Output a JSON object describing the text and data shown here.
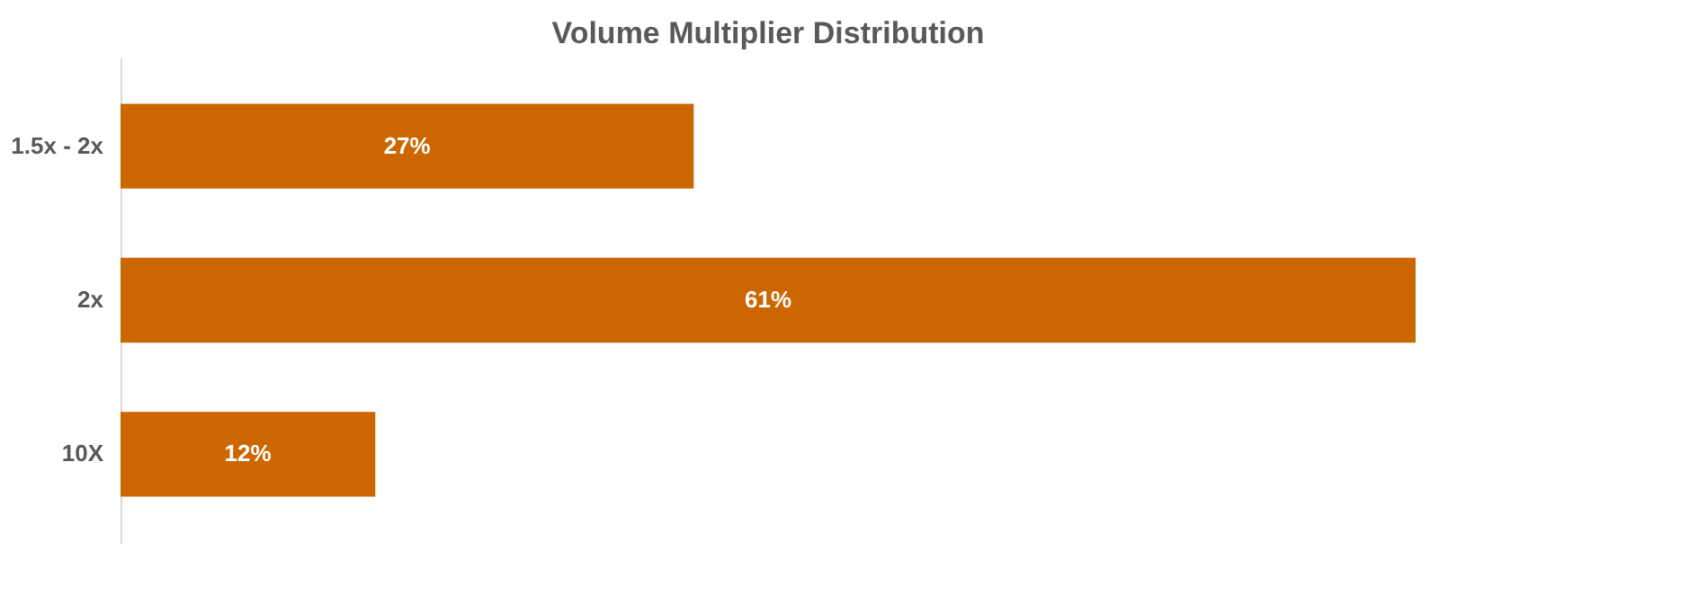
{
  "chart_data": {
    "type": "bar",
    "orientation": "horizontal",
    "title": "Volume Multiplier Distribution",
    "categories": [
      "1.5x - 2x",
      "2x",
      "10X"
    ],
    "values": [
      27,
      61,
      12
    ],
    "value_labels": [
      "27%",
      "61%",
      "12%"
    ],
    "color": "#cc6600",
    "grid": false
  }
}
